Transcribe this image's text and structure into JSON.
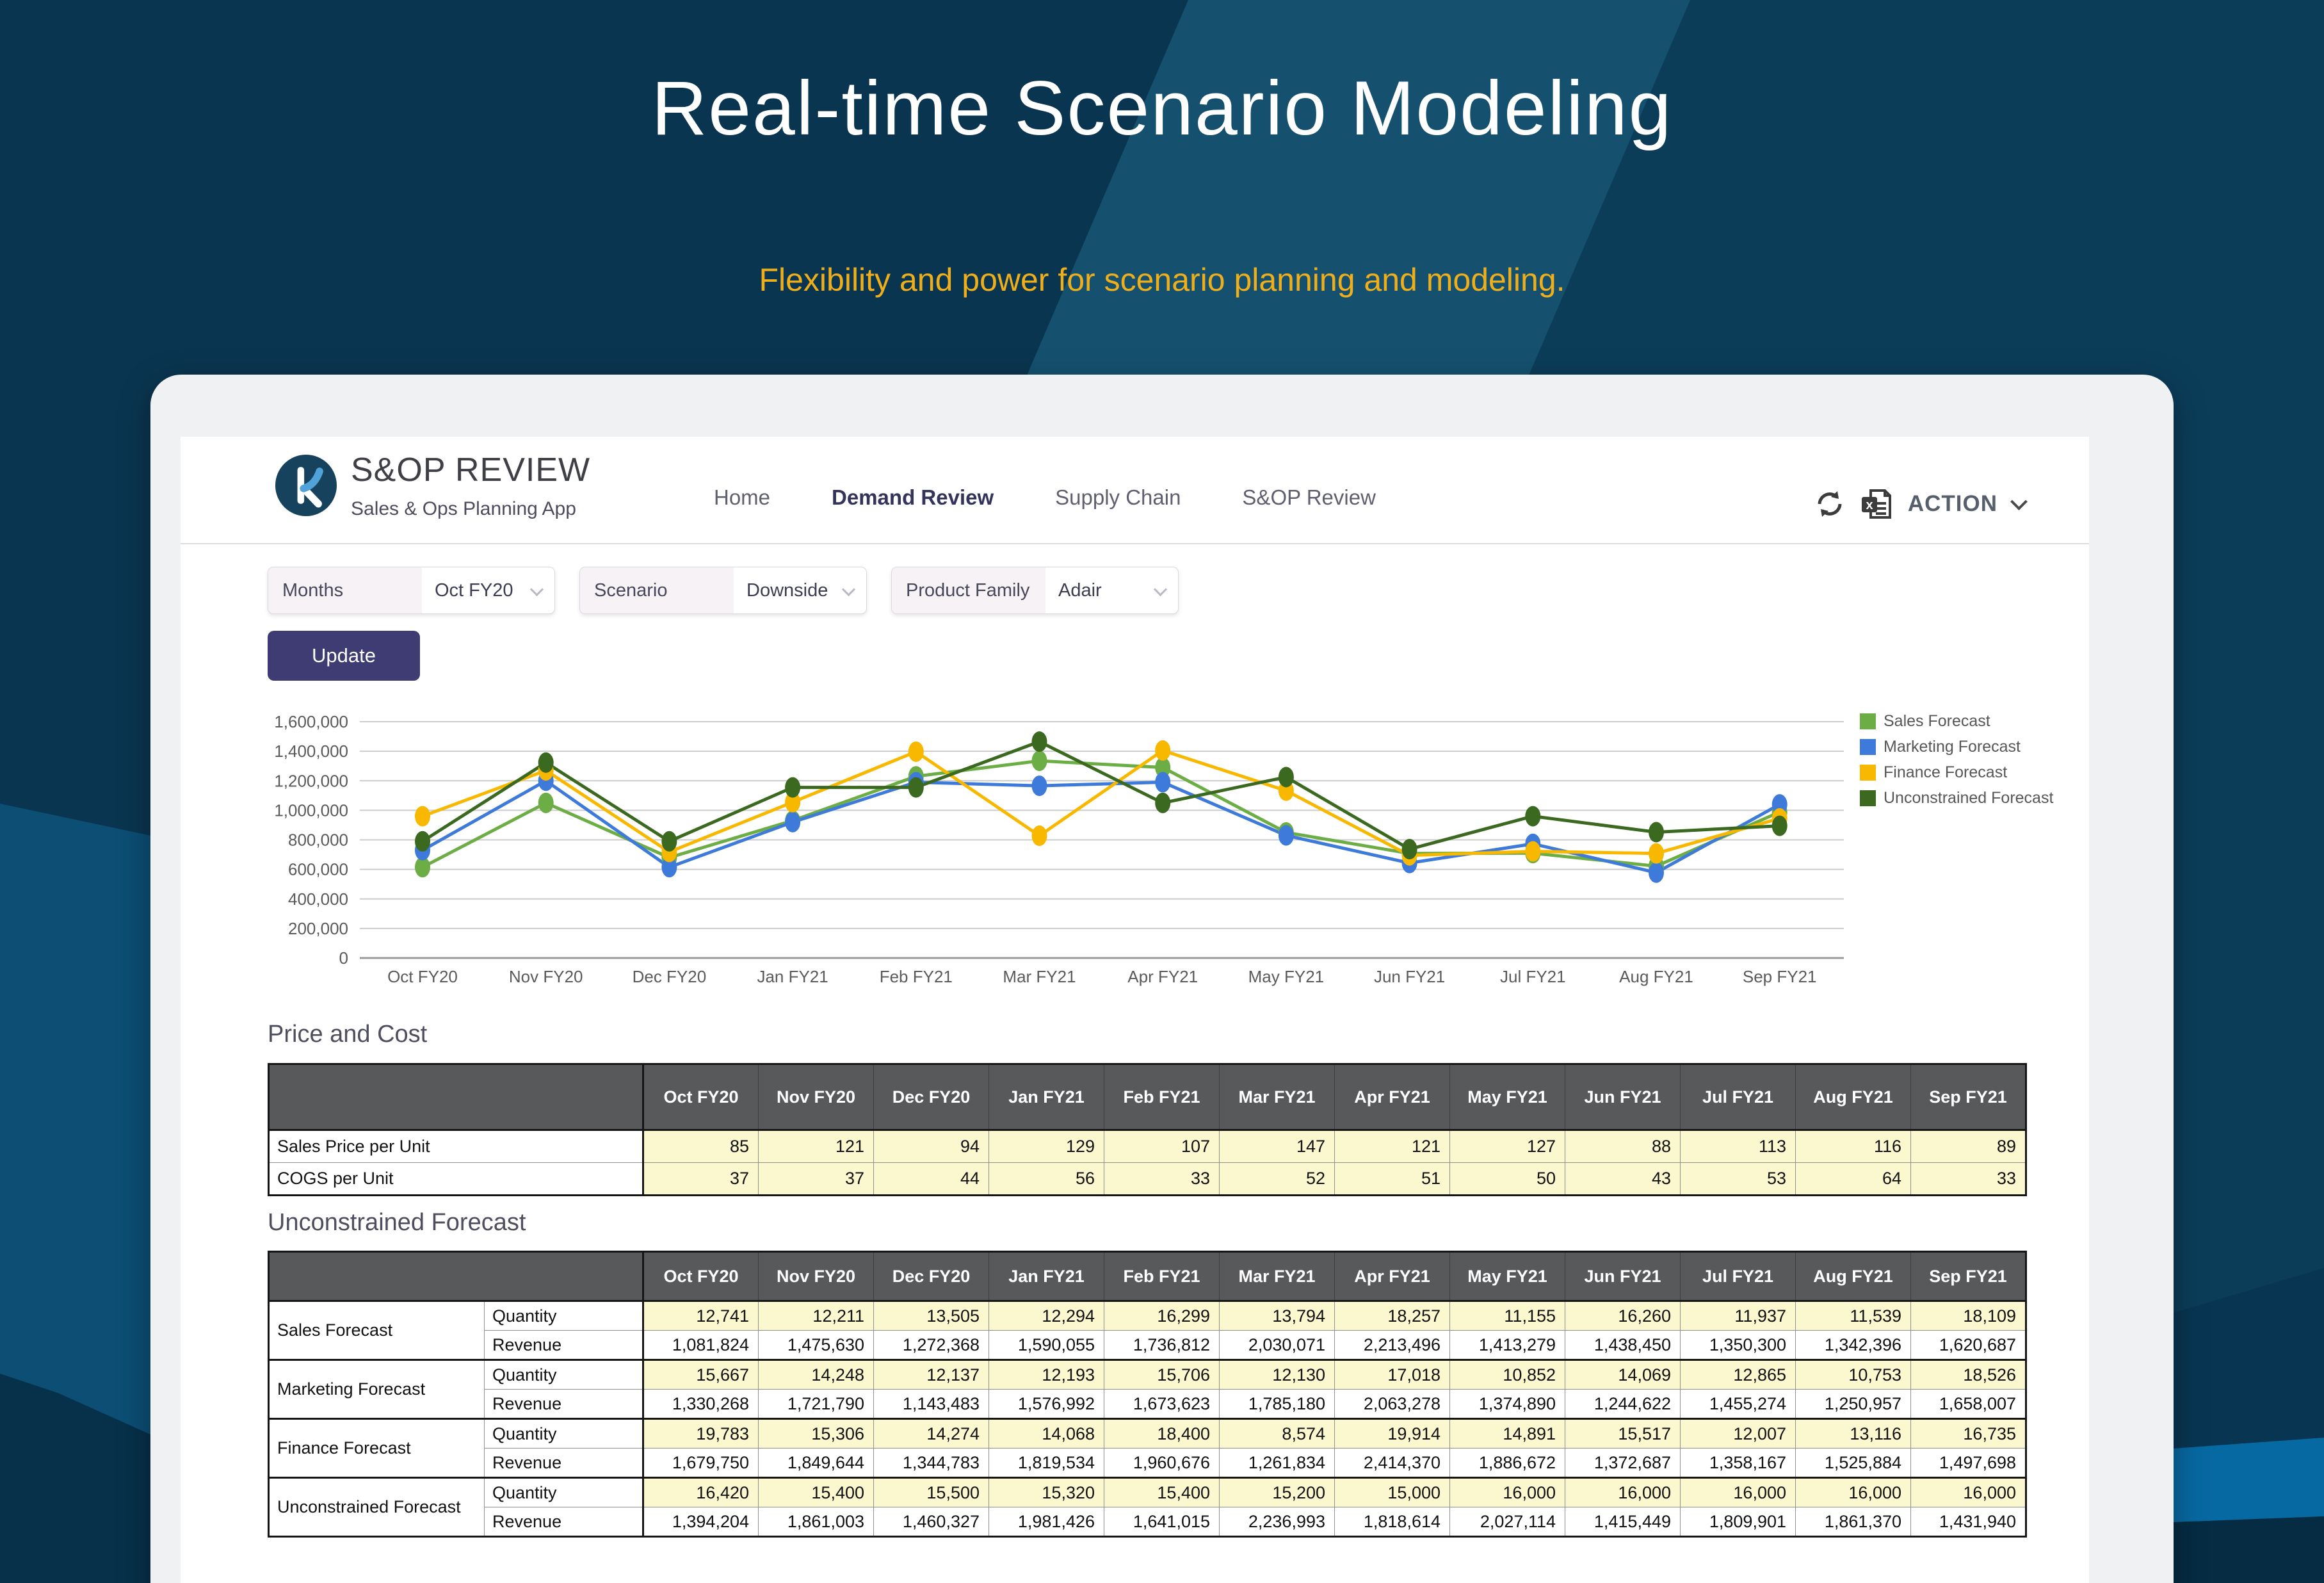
{
  "hero": {
    "title": "Real-time Scenario Modeling",
    "subtitle": "Flexibility and power for scenario planning and modeling."
  },
  "app": {
    "brand": {
      "name": "S&OP REVIEW",
      "tagline": "Sales & Ops Planning App",
      "logo_letter": "k"
    },
    "nav": [
      {
        "label": "Home",
        "active": false
      },
      {
        "label": "Demand Review",
        "active": true
      },
      {
        "label": "Supply Chain",
        "active": false
      },
      {
        "label": "S&OP Review",
        "active": false
      }
    ],
    "actions": {
      "menu_label": "ACTION"
    },
    "filters": [
      {
        "label": "Months",
        "value": "Oct FY20"
      },
      {
        "label": "Scenario",
        "value": "Downside"
      },
      {
        "label": "Product Family",
        "value": "Adair"
      }
    ],
    "update_label": "Update"
  },
  "months": [
    "Oct FY20",
    "Nov FY20",
    "Dec FY20",
    "Jan FY21",
    "Feb FY21",
    "Mar FY21",
    "Apr FY21",
    "May FY21",
    "Jun FY21",
    "Jul FY21",
    "Aug FY21",
    "Sep FY21"
  ],
  "chart_data": {
    "type": "line",
    "title": "",
    "xlabel": "",
    "ylabel": "",
    "categories": [
      "Oct FY20",
      "Nov FY20",
      "Dec FY20",
      "Jan FY21",
      "Feb FY21",
      "Mar FY21",
      "Apr FY21",
      "May FY21",
      "Jun FY21",
      "Jul FY21",
      "Aug FY21",
      "Sep FY21"
    ],
    "ylim": [
      0,
      1600000
    ],
    "ytick_step": 200000,
    "grid": true,
    "legend_position": "right",
    "series": [
      {
        "name": "Sales Forecast",
        "color": "#6CAD45",
        "values": [
          615000,
          1050000,
          680000,
          930000,
          1230000,
          1335000,
          1290000,
          850000,
          708000,
          710000,
          622000,
          988000
        ]
      },
      {
        "name": "Marketing Forecast",
        "color": "#3E7AD9",
        "values": [
          730000,
          1200000,
          615000,
          920000,
          1190000,
          1166000,
          1190000,
          830000,
          643000,
          773000,
          578000,
          1040000
        ]
      },
      {
        "name": "Finance Forecast",
        "color": "#F8B800",
        "values": [
          960000,
          1270000,
          718000,
          1055000,
          1397000,
          828000,
          1405000,
          1133000,
          695000,
          722000,
          708000,
          945000
        ]
      },
      {
        "name": "Unconstrained Forecast",
        "color": "#3A691F",
        "values": [
          790000,
          1323000,
          790000,
          1155000,
          1155000,
          1465000,
          1050000,
          1225000,
          737000,
          960000,
          852000,
          895000
        ]
      }
    ]
  },
  "price_table": {
    "title": "Price and Cost",
    "rows": [
      {
        "label": "Sales Price per Unit",
        "editable": true,
        "values": [
          85,
          121,
          94,
          129,
          107,
          147,
          121,
          127,
          88,
          113,
          116,
          89
        ]
      },
      {
        "label": "COGS per Unit",
        "editable": true,
        "values": [
          37,
          37,
          44,
          56,
          33,
          52,
          51,
          50,
          43,
          53,
          64,
          33
        ]
      }
    ]
  },
  "forecast_table": {
    "title": "Unconstrained Forecast",
    "sub_labels": {
      "quantity": "Quantity",
      "revenue": "Revenue"
    },
    "groups": [
      {
        "name": "Sales Forecast",
        "quantity": [
          12741,
          12211,
          13505,
          12294,
          16299,
          13794,
          18257,
          11155,
          16260,
          11937,
          11539,
          18109
        ],
        "revenue": [
          1081824,
          1475630,
          1272368,
          1590055,
          1736812,
          2030071,
          2213496,
          1413279,
          1438450,
          1350300,
          1342396,
          1620687
        ]
      },
      {
        "name": "Marketing Forecast",
        "quantity": [
          15667,
          14248,
          12137,
          12193,
          15706,
          12130,
          17018,
          10852,
          14069,
          12865,
          10753,
          18526
        ],
        "revenue": [
          1330268,
          1721790,
          1143483,
          1576992,
          1673623,
          1785180,
          2063278,
          1374890,
          1244622,
          1455274,
          1250957,
          1658007
        ]
      },
      {
        "name": "Finance Forecast",
        "quantity": [
          19783,
          15306,
          14274,
          14068,
          18400,
          8574,
          19914,
          14891,
          15517,
          12007,
          13116,
          16735
        ],
        "revenue": [
          1679750,
          1849644,
          1344783,
          1819534,
          1960676,
          1261834,
          2414370,
          1886672,
          1372687,
          1358167,
          1525884,
          1497698
        ]
      },
      {
        "name": "Unconstrained Forecast",
        "quantity": [
          16420,
          15400,
          15500,
          15320,
          15400,
          15200,
          15000,
          16000,
          16000,
          16000,
          16000,
          16000
        ],
        "revenue": [
          1394204,
          1861003,
          1460327,
          1981426,
          1641015,
          2236993,
          1818614,
          2027114,
          1415449,
          1809901,
          1861370,
          1431940
        ]
      }
    ]
  }
}
